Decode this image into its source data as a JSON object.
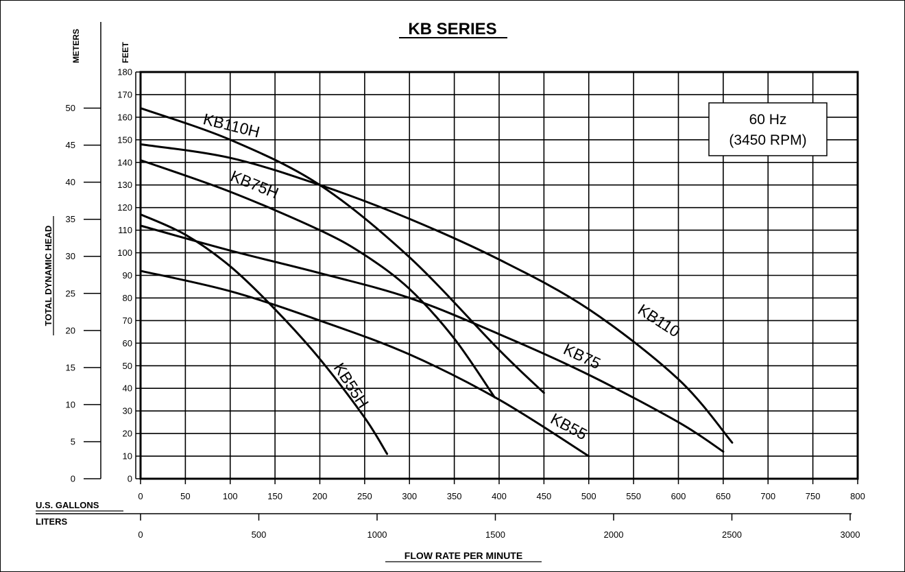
{
  "chart_data": {
    "type": "line",
    "title": "KB SERIES",
    "xlabel": "FLOW RATE PER MINUTE",
    "ylabel": "TOTAL DYNAMIC HEAD",
    "units": {
      "gallons_label": "U.S. GALLONS",
      "liters_label": "LITERS",
      "feet_label": "FEET",
      "meters_label": "METERS"
    },
    "xlim": [
      0,
      800
    ],
    "ylim": [
      0,
      180
    ],
    "liters_lim": [
      0,
      3000
    ],
    "meters_lim": [
      0,
      55
    ],
    "x_ticks": [
      "0",
      "50",
      "100",
      "150",
      "200",
      "250",
      "300",
      "350",
      "400",
      "450",
      "500",
      "550",
      "600",
      "650",
      "700",
      "750",
      "800"
    ],
    "y_ticks": [
      "0",
      "10",
      "20",
      "30",
      "40",
      "50",
      "60",
      "70",
      "80",
      "90",
      "100",
      "110",
      "120",
      "130",
      "140",
      "150",
      "160",
      "170",
      "180"
    ],
    "liters_ticks": [
      "0",
      "500",
      "1000",
      "1500",
      "2000",
      "2500",
      "3000"
    ],
    "meters_ticks": [
      "0",
      "5",
      "10",
      "15",
      "20",
      "25",
      "30",
      "35",
      "40",
      "45",
      "50"
    ],
    "annotation": [
      "60 Hz",
      "(3450 RPM)"
    ],
    "grid": true,
    "series": [
      {
        "name": "KB110H",
        "x": [
          0,
          100,
          200,
          300,
          400,
          450
        ],
        "y": [
          164,
          150,
          130,
          98,
          57,
          38
        ]
      },
      {
        "name": "KB110",
        "x": [
          0,
          100,
          200,
          300,
          400,
          500,
          600,
          660
        ],
        "y": [
          148,
          142,
          130,
          115,
          97,
          75,
          44,
          16
        ]
      },
      {
        "name": "KB75H",
        "x": [
          0,
          100,
          200,
          250,
          300,
          350,
          395
        ],
        "y": [
          141,
          127,
          110,
          99,
          84,
          62,
          36
        ]
      },
      {
        "name": "KB75",
        "x": [
          0,
          100,
          200,
          300,
          400,
          500,
          600,
          650
        ],
        "y": [
          112,
          101,
          91,
          80,
          64,
          46,
          25,
          12
        ]
      },
      {
        "name": "KB55H",
        "x": [
          0,
          50,
          100,
          150,
          200,
          250,
          275
        ],
        "y": [
          117,
          108,
          94,
          75,
          53,
          27,
          11
        ]
      },
      {
        "name": "KB55",
        "x": [
          0,
          100,
          200,
          300,
          400,
          500
        ],
        "y": [
          92,
          83,
          70,
          55,
          35,
          10
        ]
      }
    ]
  }
}
